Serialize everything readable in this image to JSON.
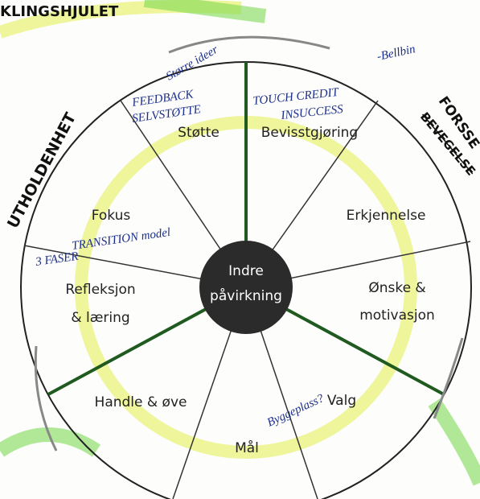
{
  "header": {
    "title": "KLINGSHJULET"
  },
  "center_label": [
    "Indre",
    "påvirkning"
  ],
  "segments": [
    {
      "label": [
        "Støtte"
      ]
    },
    {
      "label": [
        "Bevisstgjøring"
      ]
    },
    {
      "label": [
        "Erkjennelse"
      ]
    },
    {
      "label": [
        "Ønske &",
        "motivasjon"
      ]
    },
    {
      "label": [
        "Valg"
      ]
    },
    {
      "label": [
        "Mål"
      ]
    },
    {
      "label": [
        "Handle & øve"
      ]
    },
    {
      "label": [
        "Refleksjon",
        "& læring"
      ]
    },
    {
      "label": [
        "Fokus"
      ]
    }
  ],
  "ring_notes": [
    "UTHOLDENHET",
    "FORSSE",
    "BEVEGELSE"
  ],
  "handwritten": [
    "FEEDBACK",
    "SELVSTØTTE",
    "TOUCH CREDIT",
    "INSUCCESS",
    "-Bellbin",
    "Større ideer",
    "3 FASER",
    "Byggeplass?",
    "TRANSITION model"
  ]
}
